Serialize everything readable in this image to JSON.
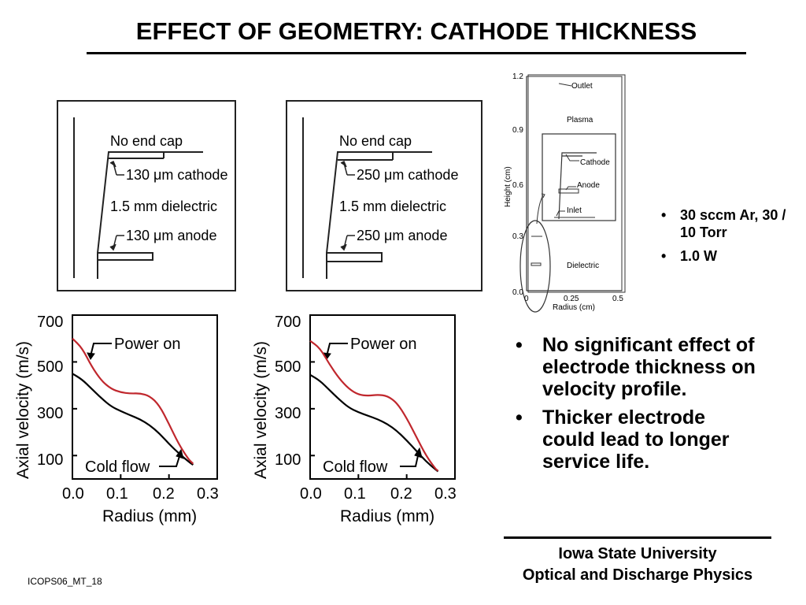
{
  "title": "EFFECT OF GEOMETRY: CATHODE THICKNESS",
  "schematics": [
    {
      "end_cap": "No end cap",
      "cathode": "130 μm cathode",
      "dielectric": "1.5 mm dielectric",
      "anode": "130 μm anode"
    },
    {
      "end_cap": "No end cap",
      "cathode": "250 μm cathode",
      "dielectric": "1.5 mm dielectric",
      "anode": "250 μm anode"
    }
  ],
  "geometry": {
    "ylabel": "Height (cm)",
    "xlabel": "Radius (cm)",
    "yticks": [
      "1.2",
      "0.9",
      "0.6",
      "0.3",
      "0.0"
    ],
    "xticks": [
      "0",
      "0.25",
      "0.5"
    ],
    "labels": {
      "outlet": "Outlet",
      "plasma": "Plasma",
      "cathode": "Cathode",
      "anode": "Anode",
      "inlet": "Inlet",
      "dielectric": "Dielectric"
    }
  },
  "conditions": [
    "30 sccm Ar, 30 / 10 Torr",
    "1.0 W"
  ],
  "conclusions": [
    "No significant effect of electrode thickness on velocity profile.",
    "Thicker electrode could lead to longer service life."
  ],
  "footer": {
    "line1": "Iowa State University",
    "line2": "Optical and Discharge Physics"
  },
  "slide_id": "ICOPS06_MT_18",
  "chart_data": [
    {
      "type": "line",
      "xlabel": "Radius (mm)",
      "ylabel": "Axial velocity (m/s)",
      "xlim": [
        0.0,
        0.3
      ],
      "ylim": [
        0,
        700
      ],
      "xticks": [
        "0.0",
        "0.1",
        "0.2",
        "0.3"
      ],
      "yticks": [
        "700",
        "500",
        "300",
        "100"
      ],
      "annotations": [
        "Power on",
        "Cold flow"
      ],
      "series": [
        {
          "name": "Power on",
          "color": "#c0272d",
          "x": [
            0.0,
            0.02,
            0.04,
            0.06,
            0.08,
            0.1,
            0.12,
            0.14,
            0.16,
            0.18,
            0.2,
            0.22,
            0.24,
            0.25
          ],
          "y": [
            600,
            560,
            480,
            420,
            385,
            370,
            365,
            366,
            355,
            315,
            235,
            150,
            85,
            65
          ]
        },
        {
          "name": "Cold flow",
          "color": "#000000",
          "x": [
            0.0,
            0.02,
            0.04,
            0.06,
            0.08,
            0.1,
            0.12,
            0.14,
            0.16,
            0.18,
            0.2,
            0.22,
            0.24,
            0.25
          ],
          "y": [
            450,
            425,
            385,
            345,
            310,
            290,
            272,
            255,
            230,
            195,
            150,
            110,
            75,
            60
          ]
        }
      ]
    },
    {
      "type": "line",
      "xlabel": "Radius (mm)",
      "ylabel": "Axial velocity (m/s)",
      "xlim": [
        0.0,
        0.3
      ],
      "ylim": [
        0,
        700
      ],
      "xticks": [
        "0.0",
        "0.1",
        "0.2",
        "0.3"
      ],
      "yticks": [
        "700",
        "500",
        "300",
        "100"
      ],
      "annotations": [
        "Power on",
        "Cold flow"
      ],
      "series": [
        {
          "name": "Power on",
          "color": "#c0272d",
          "x": [
            0.0,
            0.02,
            0.04,
            0.06,
            0.08,
            0.1,
            0.12,
            0.14,
            0.16,
            0.18,
            0.2,
            0.22,
            0.24,
            0.26,
            0.265
          ],
          "y": [
            590,
            560,
            490,
            430,
            385,
            360,
            355,
            360,
            355,
            325,
            260,
            180,
            100,
            42,
            35
          ]
        },
        {
          "name": "Cold flow",
          "color": "#000000",
          "x": [
            0.0,
            0.02,
            0.04,
            0.06,
            0.08,
            0.1,
            0.12,
            0.14,
            0.16,
            0.18,
            0.2,
            0.22,
            0.24,
            0.26,
            0.265
          ],
          "y": [
            445,
            420,
            380,
            340,
            305,
            285,
            270,
            255,
            235,
            205,
            165,
            120,
            75,
            40,
            32
          ]
        }
      ]
    }
  ]
}
